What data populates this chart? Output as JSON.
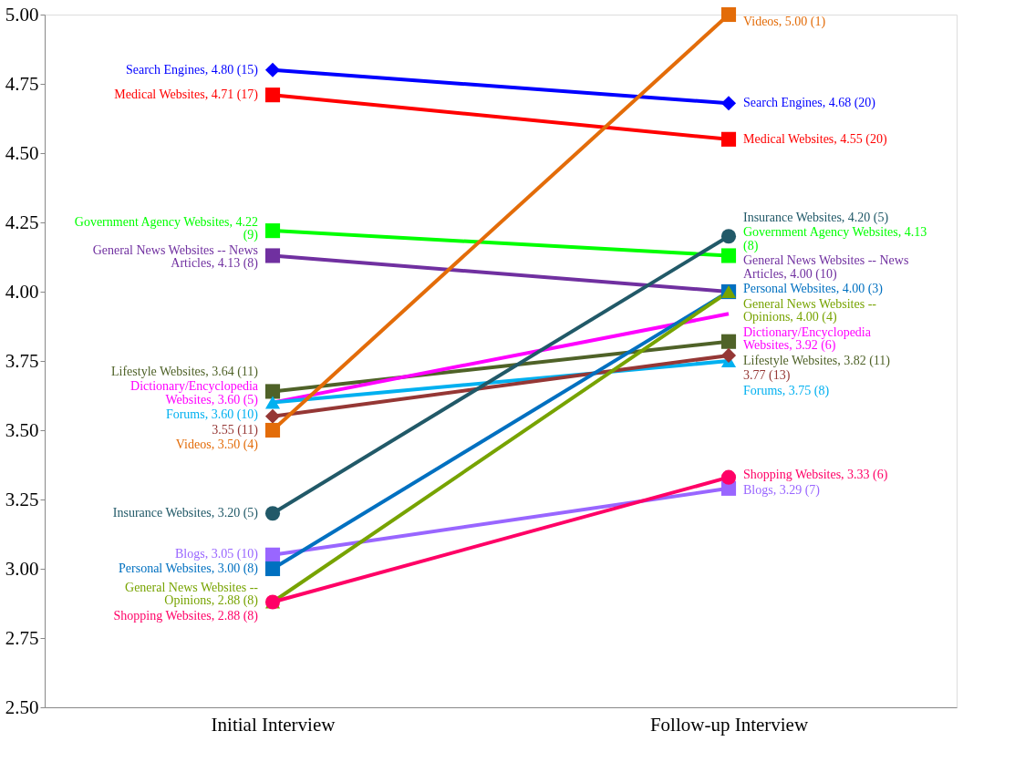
{
  "chart_data": {
    "type": "line",
    "categories": [
      "Initial Interview",
      "Follow-up Interview"
    ],
    "ylim": [
      2.5,
      5
    ],
    "yticks": [
      {
        "value": 2.5,
        "label": "2.50"
      },
      {
        "value": 2.75,
        "label": "2.75"
      },
      {
        "value": 3,
        "label": "3.00"
      },
      {
        "value": 3.25,
        "label": "3.25"
      },
      {
        "value": 3.5,
        "label": "3.50"
      },
      {
        "value": 3.75,
        "label": "3.75"
      },
      {
        "value": 4,
        "label": "4.00"
      },
      {
        "value": 4.25,
        "label": "4.25"
      },
      {
        "value": 4.5,
        "label": "4.50"
      },
      {
        "value": 4.75,
        "label": "4.75"
      },
      {
        "value": 5,
        "label": "5.00"
      }
    ],
    "grid": false,
    "legend": false,
    "line_style": "solid",
    "series": [
      {
        "color": "#0000ff",
        "marker": "diamond",
        "values": [
          4.8,
          4.68
        ],
        "value_labels": [
          "Search Engines, 4.80 (15)",
          "Search Engines, 4.68 (20)"
        ]
      },
      {
        "color": "#ff0000",
        "marker": "square",
        "values": [
          4.71,
          4.55
        ],
        "value_labels": [
          "Medical Websites, 4.71 (17)",
          "Medical Websites, 4.55 (20)"
        ]
      },
      {
        "color": "#00ff00",
        "marker": "square",
        "values": [
          4.22,
          4.13
        ],
        "value_labels": [
          "Government Agency Websites, 4.22 (9)",
          "Government Agency Websites, 4.13 (8)"
        ]
      },
      {
        "color": "#7030a0",
        "marker": "square",
        "values": [
          4.13,
          4.0
        ],
        "value_labels": [
          "General News Websites -- News Articles, 4.13 (8)",
          "General News Websites -- News Articles, 4.00 (10)"
        ]
      },
      {
        "color": "#4f6228",
        "marker": "square",
        "values": [
          3.64,
          3.82
        ],
        "value_labels": [
          "Lifestyle Websites, 3.64 (11)",
          "Lifestyle Websites, 3.82 (11)"
        ]
      },
      {
        "color": "#ff00ff",
        "marker": "none",
        "values": [
          3.6,
          3.92
        ],
        "value_labels": [
          "Dictionary/Encyclopedia Websites, 3.60 (5)",
          "Dictionary/Encyclopedia Websites, 3.92 (6)"
        ]
      },
      {
        "color": "#00b0f0",
        "marker": "triangle",
        "values": [
          3.6,
          3.75
        ],
        "value_labels": [
          "Forums, 3.60 (10)",
          "Forums, 3.75 (8)"
        ]
      },
      {
        "color": "#953735",
        "marker": "diamond",
        "values": [
          3.55,
          3.77
        ],
        "value_labels": [
          "3.55 (11)",
          "3.77 (13)"
        ]
      },
      {
        "color": "#e36c09",
        "marker": "square",
        "values": [
          3.5,
          5.0
        ],
        "value_labels": [
          "Videos, 3.50 (4)",
          "Videos, 5.00 (1)"
        ]
      },
      {
        "color": "#215968",
        "marker": "circle",
        "values": [
          3.2,
          4.2
        ],
        "value_labels": [
          "Insurance Websites, 3.20 (5)",
          "Insurance Websites, 4.20 (5)"
        ]
      },
      {
        "color": "#9966ff",
        "marker": "square",
        "values": [
          3.05,
          3.29
        ],
        "value_labels": [
          "Blogs, 3.05 (10)",
          "Blogs, 3.29 (7)"
        ]
      },
      {
        "color": "#0070c0",
        "marker": "square",
        "values": [
          3.0,
          4.0
        ],
        "value_labels": [
          "Personal Websites, 3.00 (8)",
          "Personal Websites, 4.00 (3)"
        ]
      },
      {
        "color": "#77a300",
        "marker": "triangle",
        "values": [
          2.88,
          4.0
        ],
        "value_labels": [
          "General News Websites -- Opinions, 2.88 (8)",
          "General News Websites -- Opinions, 4.00 (4)"
        ]
      },
      {
        "color": "#ff0066",
        "marker": "circle",
        "values": [
          2.88,
          3.33
        ],
        "value_labels": [
          "Shopping Websites, 2.88 (8)",
          "Shopping Websites, 3.33 (6)"
        ]
      }
    ]
  }
}
